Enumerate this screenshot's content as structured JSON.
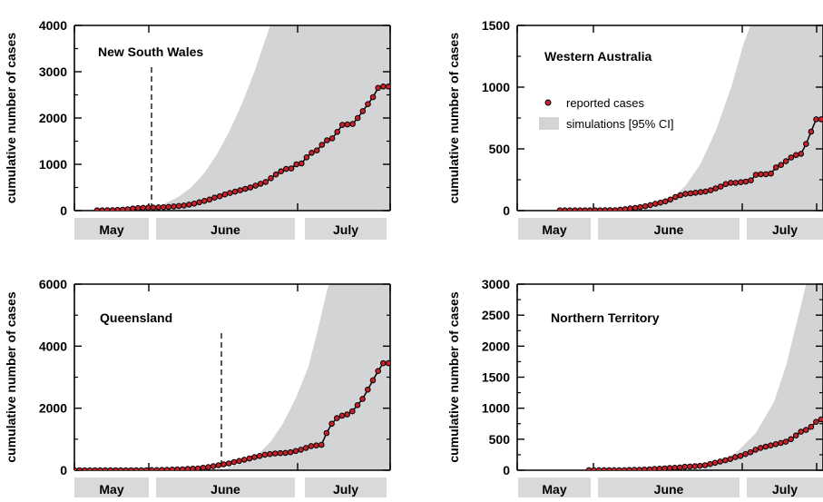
{
  "chart_data": [
    {
      "type": "line",
      "title": "New South Wales",
      "ylabel": "cumulative number of cases",
      "ylim": [
        0,
        4000
      ],
      "yticks": [
        0,
        1000,
        2000,
        3000,
        4000
      ],
      "months": [
        {
          "label": "May"
        },
        {
          "label": "June"
        },
        {
          "label": "July"
        }
      ],
      "intervention_line": true,
      "ci": [
        [
          0.286,
          150
        ],
        [
          0.33,
          300
        ],
        [
          0.37,
          500
        ],
        [
          0.41,
          800
        ],
        [
          0.45,
          1200
        ],
        [
          0.49,
          1700
        ],
        [
          0.53,
          2300
        ],
        [
          0.57,
          3000
        ],
        [
          0.6,
          3600
        ],
        [
          0.625,
          4100
        ]
      ],
      "series": [
        {
          "values": [
            5,
            5,
            8,
            10,
            15,
            20,
            30,
            45,
            55,
            60,
            62,
            65,
            70,
            75,
            80,
            90,
            100,
            110,
            130,
            150,
            180,
            210,
            240,
            280,
            310,
            350,
            380,
            410,
            440,
            470,
            500,
            540,
            580,
            620,
            700,
            780,
            850,
            900,
            910,
            1000,
            1020,
            1150,
            1250,
            1300,
            1420,
            1520,
            1560,
            1700,
            1850,
            1860,
            1870,
            2000,
            2150,
            2300,
            2450,
            2650,
            2680,
            2680
          ]
        }
      ]
    },
    {
      "type": "line",
      "title": "Western Australia",
      "ylabel": "cumulative number of cases",
      "ylim": [
        0,
        1500
      ],
      "yticks": [
        0,
        500,
        1000,
        1500
      ],
      "months": [
        {
          "label": "May"
        },
        {
          "label": "June"
        },
        {
          "label": "July"
        }
      ],
      "legend": {
        "points": "reported cases",
        "band": "simulations [95% CI]"
      },
      "ci": [
        [
          0.4,
          0
        ],
        [
          0.45,
          30
        ],
        [
          0.5,
          90
        ],
        [
          0.55,
          200
        ],
        [
          0.6,
          380
        ],
        [
          0.65,
          650
        ],
        [
          0.7,
          1000
        ],
        [
          0.74,
          1350
        ],
        [
          0.77,
          1550
        ]
      ],
      "series": [
        {
          "values": [
            2,
            2,
            2,
            2,
            2,
            2,
            2,
            2,
            2,
            3,
            3,
            3,
            8,
            12,
            18,
            22,
            28,
            35,
            45,
            55,
            65,
            75,
            90,
            110,
            125,
            135,
            140,
            145,
            150,
            155,
            165,
            180,
            195,
            215,
            225,
            225,
            230,
            235,
            245,
            290,
            295,
            295,
            300,
            350,
            370,
            400,
            430,
            450,
            460,
            540,
            640,
            740,
            740
          ]
        }
      ]
    },
    {
      "type": "line",
      "title": "Queensland",
      "ylabel": "cumulative number of cases",
      "ylim": [
        0,
        6000
      ],
      "yticks": [
        0,
        2000,
        4000,
        6000
      ],
      "months": [
        {
          "label": "May"
        },
        {
          "label": "June"
        },
        {
          "label": "July"
        }
      ],
      "intervention_line": true,
      "ci": [
        [
          0.46,
          0
        ],
        [
          0.52,
          200
        ],
        [
          0.58,
          500
        ],
        [
          0.62,
          900
        ],
        [
          0.66,
          1500
        ],
        [
          0.7,
          2300
        ],
        [
          0.74,
          3300
        ],
        [
          0.77,
          4500
        ],
        [
          0.8,
          5800
        ],
        [
          0.81,
          6100
        ]
      ],
      "series": [
        {
          "values": [
            0,
            0,
            0,
            0,
            0,
            0,
            0,
            0,
            0,
            0,
            0,
            0,
            0,
            0,
            0,
            5,
            5,
            10,
            15,
            20,
            25,
            30,
            40,
            50,
            60,
            80,
            100,
            130,
            160,
            190,
            220,
            260,
            300,
            340,
            380,
            420,
            460,
            500,
            520,
            540,
            550,
            560,
            580,
            620,
            660,
            720,
            780,
            800,
            820,
            1200,
            1500,
            1680,
            1760,
            1800,
            1900,
            2100,
            2300,
            2600,
            2900,
            3200,
            3450,
            3450
          ]
        }
      ]
    },
    {
      "type": "line",
      "title": "Northern Territory",
      "ylabel": "cumulative number of cases",
      "ylim": [
        0,
        3000
      ],
      "yticks": [
        0,
        500,
        1000,
        1500,
        2000,
        2500,
        3000
      ],
      "months": [
        {
          "label": "May"
        },
        {
          "label": "June"
        },
        {
          "label": "July"
        }
      ],
      "ci": [
        [
          0.6,
          0
        ],
        [
          0.66,
          120
        ],
        [
          0.72,
          300
        ],
        [
          0.78,
          600
        ],
        [
          0.84,
          1100
        ],
        [
          0.88,
          1700
        ],
        [
          0.92,
          2500
        ],
        [
          0.95,
          3100
        ]
      ],
      "series": [
        {
          "values": [
            2,
            2,
            2,
            2,
            2,
            2,
            2,
            2,
            4,
            6,
            8,
            10,
            15,
            20,
            25,
            30,
            35,
            40,
            45,
            55,
            60,
            65,
            70,
            80,
            100,
            120,
            140,
            160,
            180,
            210,
            230,
            260,
            290,
            330,
            360,
            380,
            400,
            420,
            440,
            460,
            500,
            560,
            620,
            650,
            700,
            780,
            820
          ]
        }
      ]
    }
  ]
}
